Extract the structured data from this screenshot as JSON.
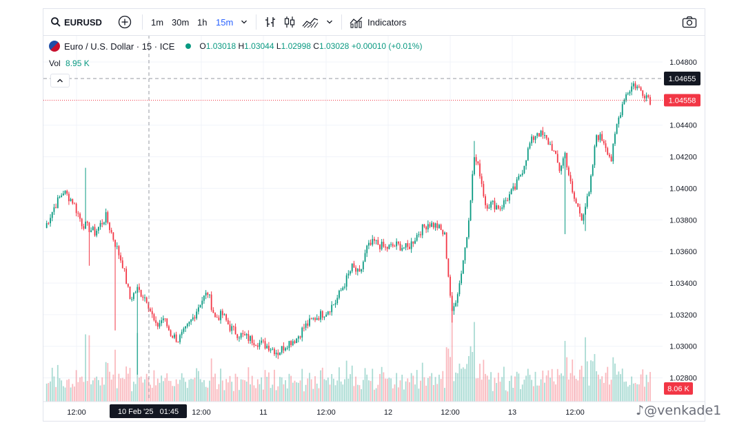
{
  "toolbar": {
    "symbol": "EURUSD",
    "intervals": [
      "1m",
      "30m",
      "1h",
      "15m"
    ],
    "active_interval": "15m",
    "indicators_label": "Indicators"
  },
  "legend": {
    "name": "Euro / U.S. Dollar · 15 · ICE",
    "o_label": "O",
    "o": "1.03018",
    "h_label": "H",
    "h": "1.03044",
    "l_label": "L",
    "l": "1.02998",
    "c_label": "C",
    "c": "1.03028",
    "change": "+0.00010 (+0.01%)"
  },
  "volume": {
    "label": "Vol",
    "value": "8.95 K",
    "badge": "8.06 K"
  },
  "crosshair": {
    "time_label": "10 Feb '25   01:45",
    "price_label": "1.04655"
  },
  "last_price_label": "1.04558",
  "watermark": "@venkade1",
  "colors": {
    "up": "#089981",
    "down": "#f23645",
    "accent": "#2962ff"
  },
  "chart_data": {
    "type": "candlestick",
    "symbol": "EURUSD",
    "interval": "15",
    "y_ticks": [
      1.028,
      1.03,
      1.032,
      1.034,
      1.036,
      1.038,
      1.04,
      1.042,
      1.044,
      1.048
    ],
    "y_tick_labels": [
      "1.02800",
      "1.03000",
      "1.03200",
      "1.03400",
      "1.03600",
      "1.03800",
      "1.04000",
      "1.04200",
      "1.04400",
      "1.04800"
    ],
    "ylim": [
      1.0265,
      1.0497
    ],
    "x_tick_labels": [
      "12:00",
      "12:00",
      "11",
      "12:00",
      "12",
      "12:00",
      "13",
      "12:00"
    ],
    "close_path": [
      [
        0,
        1.0375
      ],
      [
        5,
        1.0388
      ],
      [
        10,
        1.0398
      ],
      [
        15,
        1.0392
      ],
      [
        20,
        1.0378
      ],
      [
        27,
        1.0372
      ],
      [
        33,
        1.0382
      ],
      [
        38,
        1.0365
      ],
      [
        42,
        1.0352
      ],
      [
        46,
        1.033
      ],
      [
        50,
        1.0336
      ],
      [
        55,
        1.033
      ],
      [
        60,
        1.0312
      ],
      [
        64,
        1.0318
      ],
      [
        68,
        1.0308
      ],
      [
        72,
        1.0304
      ],
      [
        76,
        1.031
      ],
      [
        80,
        1.0318
      ],
      [
        84,
        1.0328
      ],
      [
        88,
        1.0334
      ],
      [
        92,
        1.0318
      ],
      [
        96,
        1.032
      ],
      [
        100,
        1.0312
      ],
      [
        104,
        1.0308
      ],
      [
        110,
        1.0305
      ],
      [
        116,
        1.0302
      ],
      [
        121,
        1.03
      ],
      [
        126,
        1.0296
      ],
      [
        131,
        1.0302
      ],
      [
        136,
        1.0305
      ],
      [
        140,
        1.0312
      ],
      [
        146,
        1.0318
      ],
      [
        152,
        1.0322
      ],
      [
        157,
        1.0328
      ],
      [
        162,
        1.034
      ],
      [
        166,
        1.035
      ],
      [
        170,
        1.0345
      ],
      [
        174,
        1.0362
      ],
      [
        178,
        1.0366
      ],
      [
        184,
        1.0362
      ],
      [
        190,
        1.0364
      ],
      [
        196,
        1.0362
      ],
      [
        202,
        1.0372
      ],
      [
        207,
        1.0378
      ],
      [
        212,
        1.0376
      ],
      [
        216,
        1.037
      ],
      [
        220,
        1.032
      ],
      [
        224,
        1.034
      ],
      [
        228,
        1.037
      ],
      [
        232,
        1.042
      ],
      [
        235,
        1.041
      ],
      [
        238,
        1.039
      ],
      [
        242,
        1.039
      ],
      [
        246,
        1.0388
      ],
      [
        250,
        1.0394
      ],
      [
        254,
        1.04
      ],
      [
        258,
        1.0412
      ],
      [
        262,
        1.0428
      ],
      [
        266,
        1.0436
      ],
      [
        270,
        1.0432
      ],
      [
        274,
        1.0426
      ],
      [
        278,
        1.0412
      ],
      [
        281,
        1.0422
      ],
      [
        285,
        1.0396
      ],
      [
        290,
        1.0382
      ],
      [
        294,
        1.0396
      ],
      [
        298,
        1.0434
      ],
      [
        302,
        1.043
      ],
      [
        306,
        1.0418
      ],
      [
        309,
        1.044
      ],
      [
        313,
        1.0458
      ],
      [
        318,
        1.0466
      ],
      [
        322,
        1.0462
      ],
      [
        326,
        1.0458
      ],
      [
        327,
        1.0456
      ]
    ],
    "spikes": [
      {
        "i": 22,
        "high": 1.0413
      },
      {
        "i": 24,
        "low": 1.0351
      },
      {
        "i": 38,
        "low": 1.031
      },
      {
        "i": 50,
        "low": 1.0282
      },
      {
        "i": 220,
        "low": 1.0315
      },
      {
        "i": 232,
        "high": 1.043
      },
      {
        "i": 281,
        "low": 1.0371
      },
      {
        "i": 292,
        "low": 1.0373
      }
    ],
    "last_price": 1.04558,
    "crosshair_price": 1.04655,
    "crosshair_time": "10 Feb '25 01:45",
    "volume_last": "8.06 K"
  }
}
